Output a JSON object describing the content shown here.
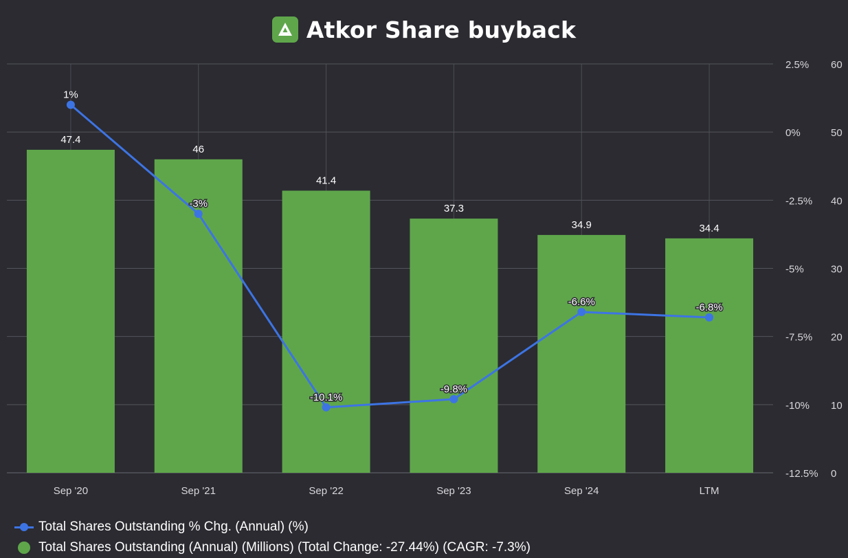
{
  "title": "Atkor Share buyback",
  "colors": {
    "bar": "#5fa64b",
    "line": "#3d74e4",
    "background": "#2b2b31",
    "grid": "#55555d"
  },
  "legend": {
    "line_label": "Total Shares Outstanding % Chg. (Annual) (%)",
    "bar_label": "Total Shares Outstanding (Annual) (Millions) (Total Change: -27.44%) (CAGR: -7.3%)"
  },
  "chart_data": {
    "type": "bar",
    "categories": [
      "Sep '20",
      "Sep '21",
      "Sep '22",
      "Sep '23",
      "Sep '24",
      "LTM"
    ],
    "series": [
      {
        "name": "Total Shares Outstanding (Annual) (Millions)",
        "type": "bar",
        "axis": "right",
        "values": [
          47.4,
          46,
          41.4,
          37.3,
          34.9,
          34.4
        ],
        "labels": [
          "47.4",
          "46",
          "41.4",
          "37.3",
          "34.9",
          "34.4"
        ]
      },
      {
        "name": "Total Shares Outstanding % Chg. (Annual) (%)",
        "type": "line",
        "axis": "left",
        "values": [
          1,
          -3,
          -10.1,
          -9.8,
          -6.6,
          -6.8
        ],
        "labels": [
          "1%",
          "-3%",
          "-10.1%",
          "-9.8%",
          "-6.6%",
          "-6.8%"
        ]
      }
    ],
    "y_pct_axis": {
      "min": -12.5,
      "max": 2.5,
      "ticks": [
        "2.5%",
        "0%",
        "-2.5%",
        "-5%",
        "-7.5%",
        "-10%",
        "-12.5%"
      ]
    },
    "y_val_axis": {
      "min": 0,
      "max": 60,
      "ticks": [
        "60",
        "50",
        "40",
        "30",
        "20",
        "10",
        "0"
      ]
    },
    "grid": true,
    "legend_position": "bottom-left"
  }
}
